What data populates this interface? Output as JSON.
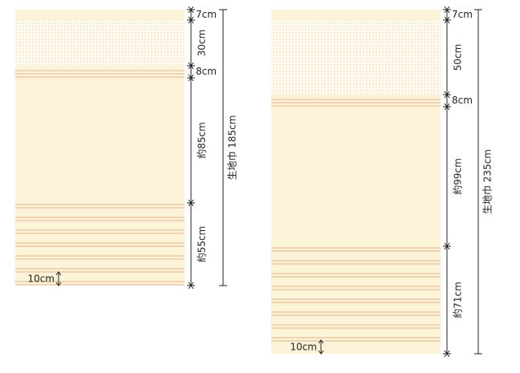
{
  "panels": [
    {
      "top": "7cm",
      "upper": "30cm",
      "band": "8cm",
      "middle": "約85cm",
      "lower": "約55cm",
      "total": "生地巾 185cm",
      "hem": "10cm"
    },
    {
      "top": "7cm",
      "upper": "50cm",
      "band": "8cm",
      "middle": "約99cm",
      "lower": "約71cm",
      "total": "生地巾 235cm",
      "hem": "10cm"
    }
  ]
}
